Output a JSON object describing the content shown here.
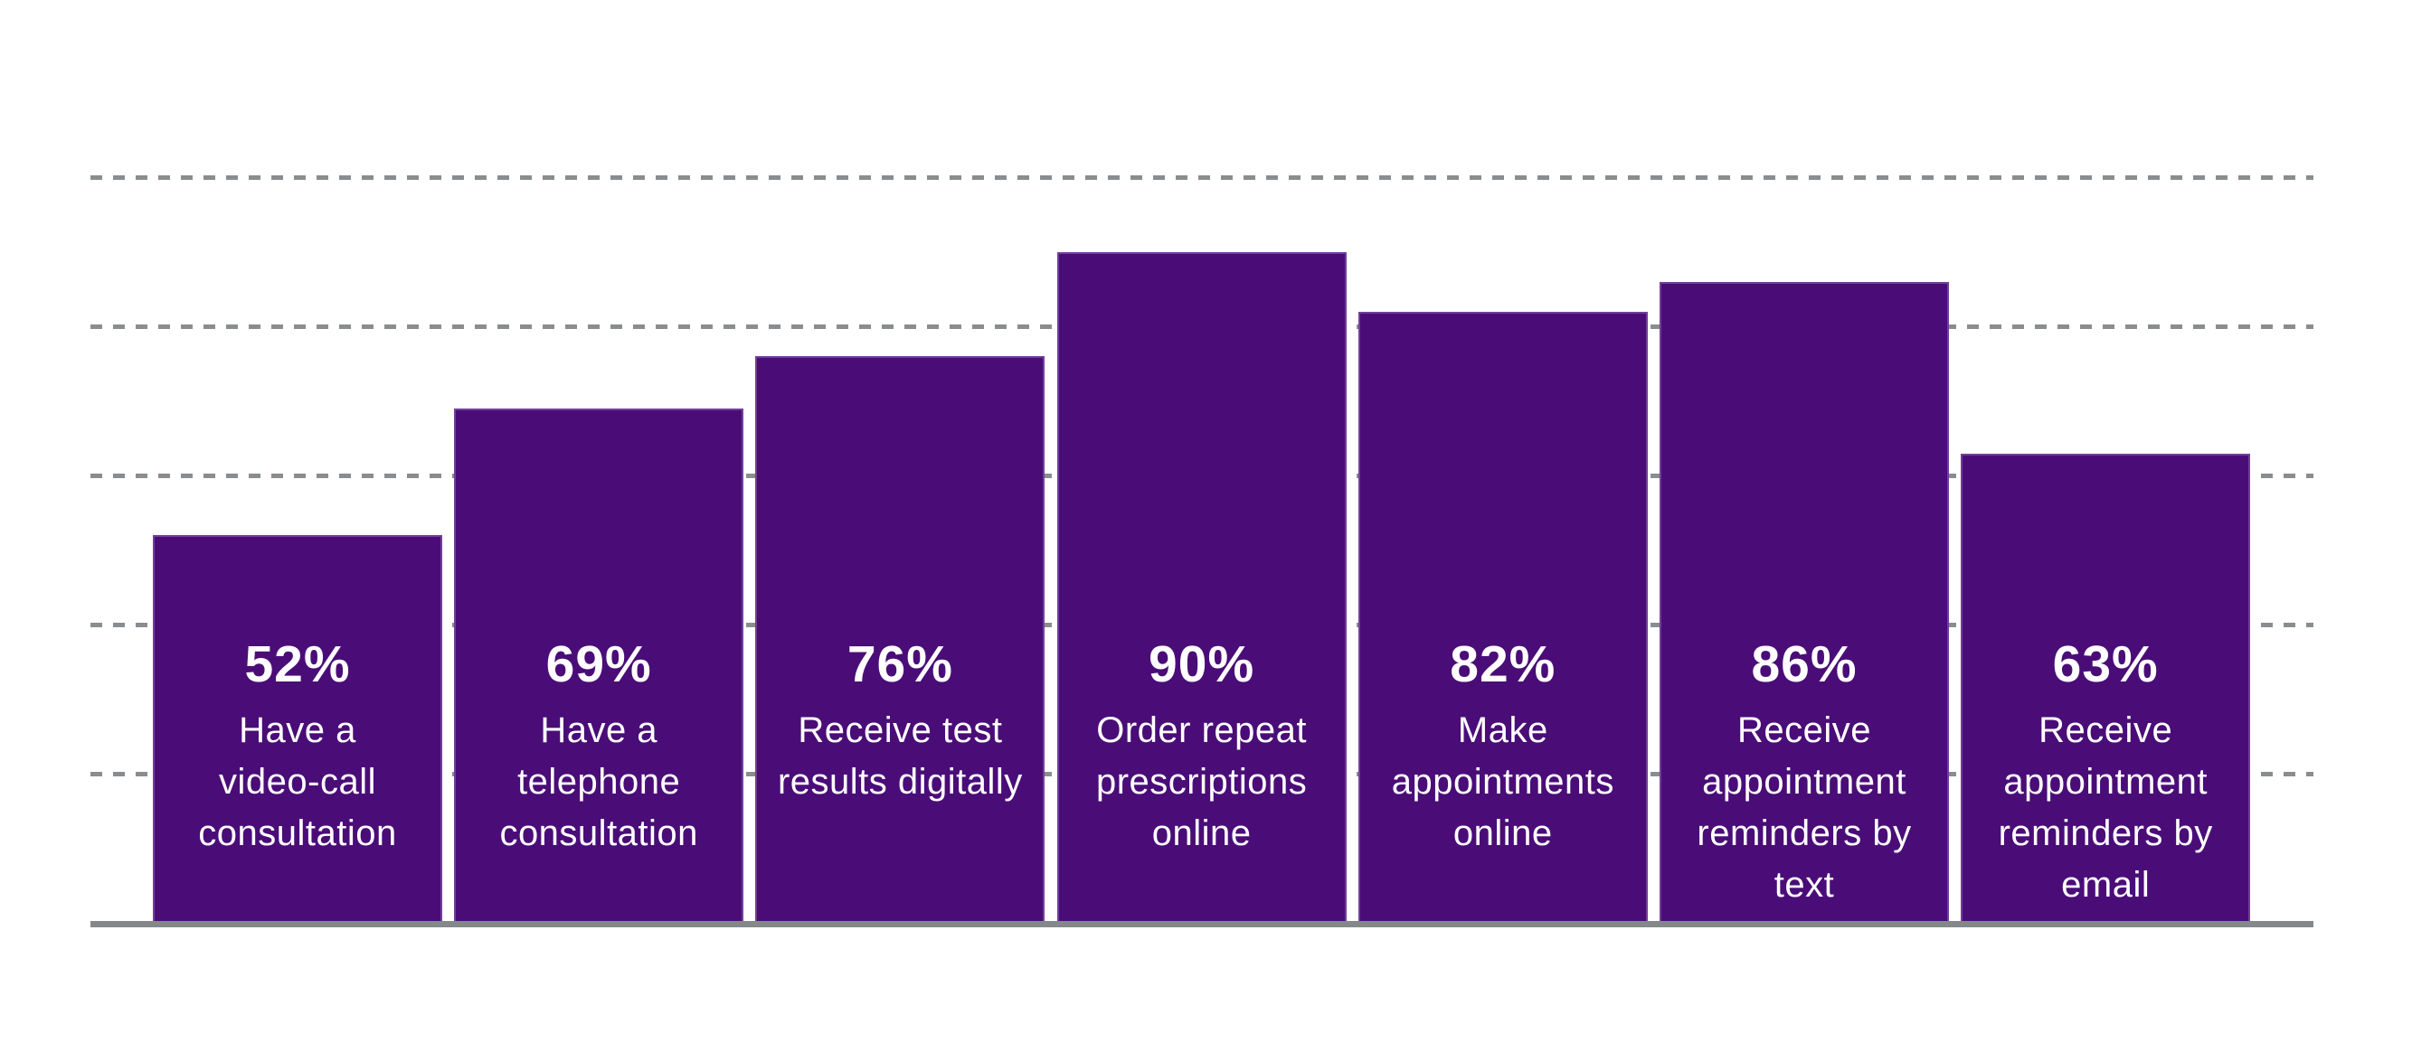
{
  "chart_data": {
    "type": "bar",
    "title": "",
    "unit": "%",
    "ylim": [
      0,
      100
    ],
    "grid": "horizontal dashed gridlines, no axis tick labels",
    "gridline_values": [
      20,
      40,
      60,
      80,
      100
    ],
    "legend_position": "none",
    "xlabel": "",
    "ylabel": "",
    "categories": [
      "Have a video-call consultation",
      "Have a telephone consultation",
      "Receive test results digitally",
      "Order repeat prescriptions online",
      "Make appointments online",
      "Receive appointment reminders by text",
      "Receive appointment reminders by email"
    ],
    "values": [
      52,
      69,
      76,
      90,
      82,
      86,
      63
    ],
    "bars": [
      {
        "value": 52,
        "value_label": "52%",
        "label_lines": [
          "Have a",
          "video-call",
          "consultation"
        ]
      },
      {
        "value": 69,
        "value_label": "69%",
        "label_lines": [
          "Have a",
          "telephone",
          "consultation"
        ]
      },
      {
        "value": 76,
        "value_label": "76%",
        "label_lines": [
          "Receive test",
          "results digitally"
        ]
      },
      {
        "value": 90,
        "value_label": "90%",
        "label_lines": [
          "Order repeat",
          "prescriptions",
          "online"
        ]
      },
      {
        "value": 82,
        "value_label": "82%",
        "label_lines": [
          "Make",
          "appointments",
          "online"
        ]
      },
      {
        "value": 86,
        "value_label": "86%",
        "label_lines": [
          "Receive",
          "appointment",
          "reminders by",
          "text"
        ]
      },
      {
        "value": 63,
        "value_label": "63%",
        "label_lines": [
          "Receive",
          "appointment",
          "reminders by",
          "email"
        ]
      }
    ],
    "colors": {
      "bar_fill": "#4A0D78",
      "bar_edge": "#9B7FBA",
      "gridline": "#8A8D8F",
      "axis_line": "#85888A",
      "value_text": "#FFFFFF",
      "background": "#FFFFFF"
    }
  }
}
